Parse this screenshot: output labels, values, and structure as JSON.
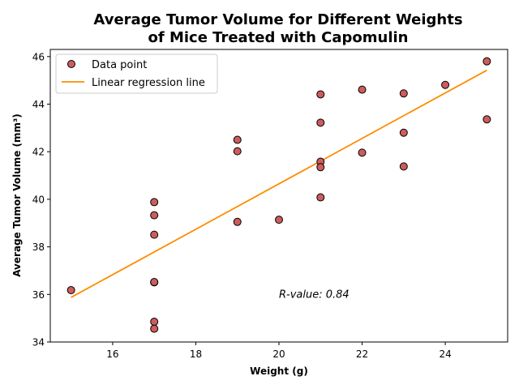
{
  "chart_data": {
    "type": "scatter",
    "title_line1": "Average Tumor Volume for Different Weights",
    "title_line2": "of Mice Treated with Capomulin",
    "xlabel": "Weight (g)",
    "ylabel": "Average Tumor Volume (mm³)",
    "xlim": [
      14.5,
      25.5
    ],
    "ylim": [
      34,
      46.3
    ],
    "xticks": [
      16,
      18,
      20,
      22,
      24
    ],
    "yticks": [
      34,
      36,
      38,
      40,
      42,
      44,
      46
    ],
    "grid": false,
    "legend_position": "top-left",
    "colors": {
      "marker_fill": "#cd5c5c",
      "marker_edge": "#000000",
      "regression_line": "#ff8c00"
    },
    "series": [
      {
        "name": "Data point",
        "kind": "scatter",
        "points": [
          {
            "x": 15,
            "y": 36.18
          },
          {
            "x": 17,
            "y": 39.88
          },
          {
            "x": 17,
            "y": 39.33
          },
          {
            "x": 17,
            "y": 38.51
          },
          {
            "x": 17,
            "y": 36.51
          },
          {
            "x": 17,
            "y": 36.52
          },
          {
            "x": 17,
            "y": 34.85
          },
          {
            "x": 17,
            "y": 34.56
          },
          {
            "x": 19,
            "y": 42.5
          },
          {
            "x": 19,
            "y": 42.02
          },
          {
            "x": 19,
            "y": 39.05
          },
          {
            "x": 20,
            "y": 39.14
          },
          {
            "x": 21,
            "y": 44.41
          },
          {
            "x": 21,
            "y": 43.22
          },
          {
            "x": 21,
            "y": 41.58
          },
          {
            "x": 21,
            "y": 41.35
          },
          {
            "x": 21,
            "y": 40.08
          },
          {
            "x": 22,
            "y": 44.61
          },
          {
            "x": 22,
            "y": 41.96
          },
          {
            "x": 23,
            "y": 44.45
          },
          {
            "x": 23,
            "y": 42.8
          },
          {
            "x": 23,
            "y": 41.38
          },
          {
            "x": 24,
            "y": 44.81
          },
          {
            "x": 25,
            "y": 45.8
          },
          {
            "x": 25,
            "y": 43.36
          }
        ]
      },
      {
        "name": "Linear regression line",
        "kind": "line",
        "slope": 0.955,
        "intercept": 21.55,
        "x_range": [
          15,
          25
        ]
      }
    ],
    "annotations": [
      {
        "text": "R-value: 0.84",
        "x": 20,
        "y": 36
      }
    ]
  }
}
